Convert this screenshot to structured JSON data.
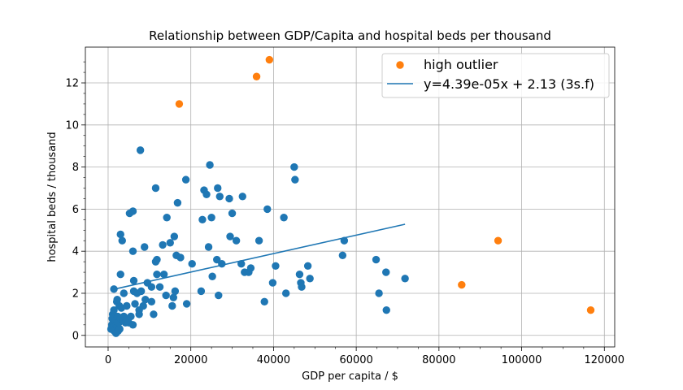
{
  "chart_data": {
    "type": "scatter",
    "title": "Relationship between GDP/Capita and hospital beds per thousand",
    "xlabel": "GDP per capita / $",
    "ylabel": "hospital beds / thousand",
    "xlim": [
      -5500,
      122500
    ],
    "ylim": [
      -0.55,
      13.7
    ],
    "xticks": [
      0,
      20000,
      40000,
      60000,
      80000,
      100000,
      120000
    ],
    "yticks": [
      0,
      2,
      4,
      6,
      8,
      10,
      12
    ],
    "grid": true,
    "legend_position": "top-right",
    "colors": {
      "main": "#1f77b4",
      "outlier": "#ff7f0e",
      "line": "#1f77b4",
      "grid": "#b0b0b0"
    },
    "series": [
      {
        "name": "",
        "kind": "scatter",
        "color": "#1f77b4",
        "points": [
          [
            700,
            0.3
          ],
          [
            900,
            0.5
          ],
          [
            1000,
            0.8
          ],
          [
            1100,
            1.0
          ],
          [
            1200,
            0.6
          ],
          [
            1300,
            0.4
          ],
          [
            1400,
            1.2
          ],
          [
            1500,
            0.2
          ],
          [
            1600,
            0.9
          ],
          [
            1700,
            0.3
          ],
          [
            1800,
            0.7
          ],
          [
            1900,
            0.1
          ],
          [
            2000,
            0.5
          ],
          [
            2100,
            1.6
          ],
          [
            2200,
            0.4
          ],
          [
            2300,
            0.9
          ],
          [
            2400,
            0.2
          ],
          [
            2600,
            0.6
          ],
          [
            2700,
            1.4
          ],
          [
            2800,
            0.3
          ],
          [
            3000,
            0.8
          ],
          [
            3200,
            1.3
          ],
          [
            3500,
            0.7
          ],
          [
            3800,
            0.9
          ],
          [
            4200,
            0.6
          ],
          [
            4500,
            0.8
          ],
          [
            5000,
            0.6
          ],
          [
            5500,
            0.9
          ],
          [
            6000,
            0.5
          ],
          [
            1400,
            2.2
          ],
          [
            2200,
            1.7
          ],
          [
            3000,
            2.9
          ],
          [
            3000,
            4.8
          ],
          [
            3400,
            4.5
          ],
          [
            3800,
            2.0
          ],
          [
            4500,
            1.4
          ],
          [
            5200,
            5.8
          ],
          [
            6000,
            5.9
          ],
          [
            6000,
            4.0
          ],
          [
            6200,
            2.6
          ],
          [
            6200,
            2.1
          ],
          [
            6500,
            1.5
          ],
          [
            7000,
            2.0
          ],
          [
            7500,
            1.0
          ],
          [
            7500,
            1.2
          ],
          [
            7800,
            8.8
          ],
          [
            8000,
            2.1
          ],
          [
            8500,
            1.4
          ],
          [
            8800,
            4.2
          ],
          [
            9000,
            1.7
          ],
          [
            9500,
            2.5
          ],
          [
            10500,
            1.6
          ],
          [
            10500,
            2.3
          ],
          [
            11000,
            1.0
          ],
          [
            11500,
            7.0
          ],
          [
            11500,
            3.5
          ],
          [
            11800,
            3.6
          ],
          [
            11800,
            2.9
          ],
          [
            12500,
            2.3
          ],
          [
            13200,
            4.3
          ],
          [
            13500,
            2.9
          ],
          [
            14000,
            1.9
          ],
          [
            14200,
            5.6
          ],
          [
            15000,
            4.4
          ],
          [
            15500,
            1.4
          ],
          [
            15800,
            1.8
          ],
          [
            16000,
            4.7
          ],
          [
            16200,
            2.1
          ],
          [
            16500,
            3.8
          ],
          [
            16800,
            6.3
          ],
          [
            17500,
            3.7
          ],
          [
            18800,
            7.4
          ],
          [
            19000,
            1.5
          ],
          [
            20300,
            3.4
          ],
          [
            22500,
            2.1
          ],
          [
            22800,
            5.5
          ],
          [
            23200,
            6.9
          ],
          [
            23800,
            6.7
          ],
          [
            24300,
            4.2
          ],
          [
            24600,
            8.1
          ],
          [
            25000,
            5.6
          ],
          [
            25200,
            2.8
          ],
          [
            26300,
            3.6
          ],
          [
            26500,
            7.0
          ],
          [
            26700,
            1.9
          ],
          [
            27000,
            6.6
          ],
          [
            27500,
            3.4
          ],
          [
            29300,
            6.5
          ],
          [
            29500,
            4.7
          ],
          [
            30000,
            5.8
          ],
          [
            31000,
            4.5
          ],
          [
            32200,
            3.4
          ],
          [
            32500,
            6.6
          ],
          [
            33000,
            3.0
          ],
          [
            34000,
            3.0
          ],
          [
            34500,
            3.2
          ],
          [
            36500,
            4.5
          ],
          [
            37800,
            1.6
          ],
          [
            38500,
            6.0
          ],
          [
            39800,
            2.5
          ],
          [
            40500,
            3.3
          ],
          [
            42500,
            5.6
          ],
          [
            43000,
            2.0
          ],
          [
            45000,
            8.0
          ],
          [
            45200,
            7.4
          ],
          [
            46300,
            2.9
          ],
          [
            46600,
            2.5
          ],
          [
            46800,
            2.3
          ],
          [
            48300,
            3.3
          ],
          [
            48800,
            2.7
          ],
          [
            56700,
            3.8
          ],
          [
            57100,
            4.5
          ],
          [
            64800,
            3.6
          ],
          [
            65500,
            2.0
          ],
          [
            67200,
            3.0
          ],
          [
            67300,
            1.2
          ],
          [
            71800,
            2.7
          ]
        ]
      },
      {
        "name": "high outlier",
        "kind": "scatter",
        "color": "#ff7f0e",
        "points": [
          [
            17200,
            11.0
          ],
          [
            35900,
            12.3
          ],
          [
            39000,
            13.1
          ],
          [
            85500,
            2.4
          ],
          [
            94300,
            4.5
          ],
          [
            116700,
            1.2
          ]
        ]
      },
      {
        "name": "y=4.39e-05x + 2.13 (3s.f)",
        "kind": "line",
        "color": "#1f77b4",
        "slope": 4.39e-05,
        "intercept": 2.13,
        "x_range": [
          2000,
          71800
        ]
      }
    ]
  }
}
